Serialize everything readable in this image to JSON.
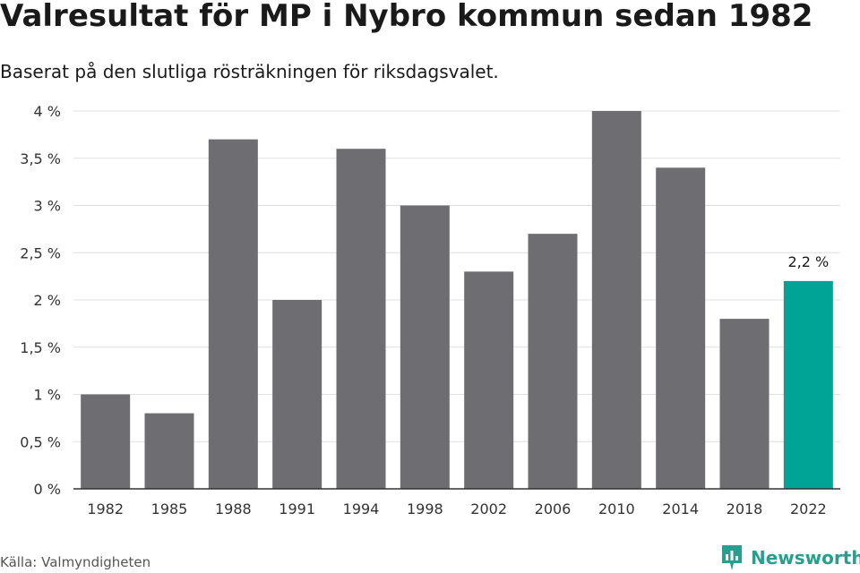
{
  "title": "Valresultat för MP i Nybro kommun sedan 1982",
  "subtitle": "Baserat på den slutliga rösträkningen för riksdagsvalet.",
  "source": "Källa: Valmyndigheten",
  "brand": {
    "name": "Newsworthy",
    "icon": "newsworthy-logo-icon"
  },
  "colors": {
    "bar": "#6e6d72",
    "highlight": "#00a497",
    "grid": "#e0e0e0",
    "axis": "#333333"
  },
  "chart_data": {
    "type": "bar",
    "title": "",
    "xlabel": "",
    "ylabel": "",
    "categories": [
      "1982",
      "1985",
      "1988",
      "1991",
      "1994",
      "1998",
      "2002",
      "2006",
      "2010",
      "2014",
      "2018",
      "2022"
    ],
    "values": [
      1.0,
      0.8,
      3.7,
      2.0,
      3.6,
      3.0,
      2.3,
      2.7,
      4.0,
      3.4,
      1.8,
      2.2
    ],
    "ylim": [
      0,
      4
    ],
    "yticks": [
      "0 %",
      "0,5 %",
      "1 %",
      "1,5 %",
      "2 %",
      "2,5 %",
      "3 %",
      "3,5 %",
      "4 %"
    ],
    "highlight_index": 11,
    "annotations": [
      {
        "category": "2022",
        "label": "2,2 %"
      }
    ],
    "grid": true,
    "legend": "none"
  }
}
